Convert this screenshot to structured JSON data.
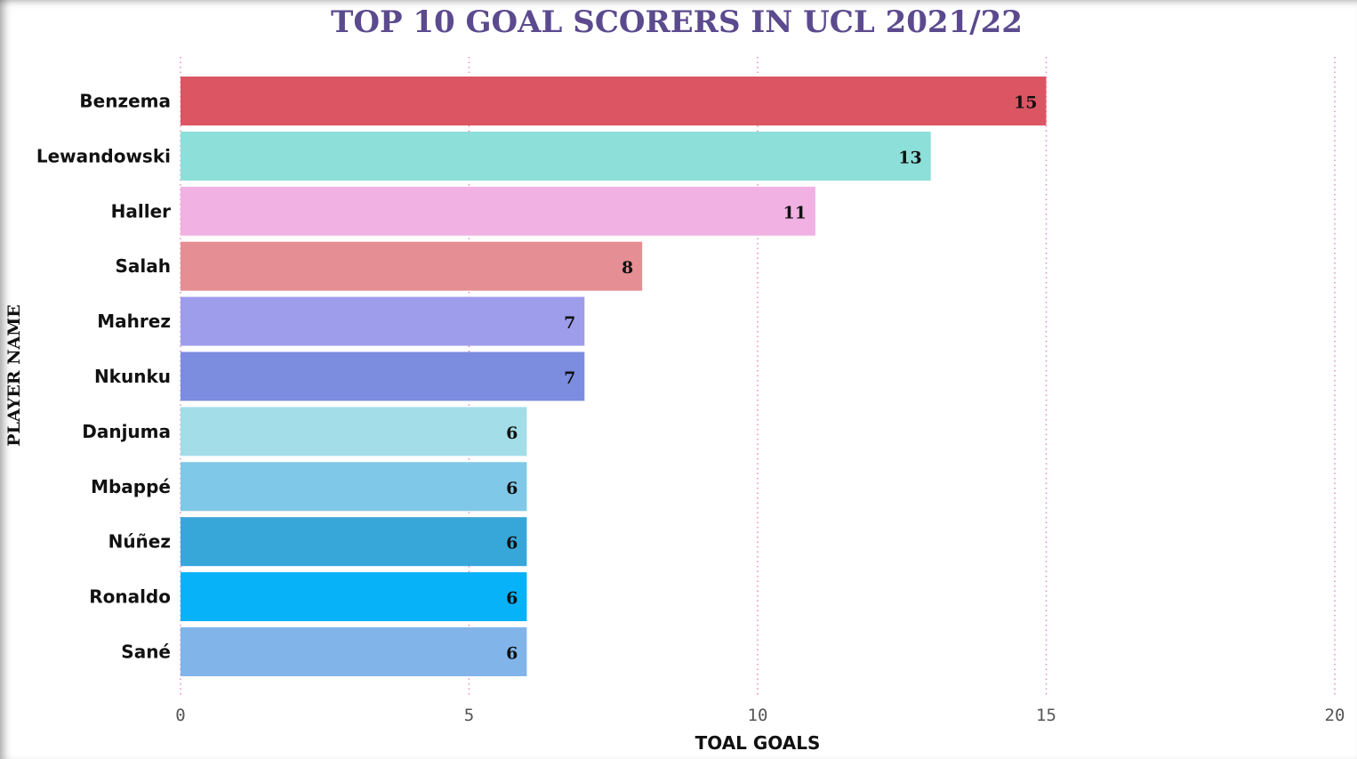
{
  "chart_data": {
    "type": "bar",
    "orientation": "horizontal",
    "title": "TOP 10 GOAL SCORERS IN UCL 2021/22",
    "xlabel": "TOAL GOALS",
    "ylabel": "PLAYER NAME",
    "categories": [
      "Benzema",
      "Lewandowski",
      "Haller",
      "Salah",
      "Mahrez",
      "Nkunku",
      "Danjuma",
      "Mbappé",
      "Núñez",
      "Ronaldo",
      "Sané"
    ],
    "values": [
      15,
      13,
      11,
      8,
      7,
      7,
      6,
      6,
      6,
      6,
      6
    ],
    "colors": [
      "#dc5563",
      "#8ddfd9",
      "#f1b1e3",
      "#e58e93",
      "#9e9dec",
      "#7c8cdf",
      "#a3dde8",
      "#80c8e7",
      "#37a7da",
      "#08b2f8",
      "#81b5ea"
    ],
    "xlim": [
      0,
      20
    ],
    "xticks": [
      0,
      5,
      10,
      15,
      20
    ],
    "grid": "vertical dotted",
    "grid_color": "#e58ac6",
    "title_color": "#5b4a8e",
    "data_labels": true
  }
}
